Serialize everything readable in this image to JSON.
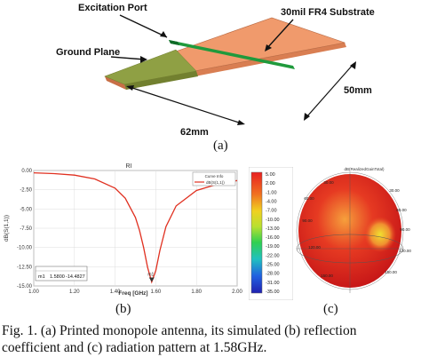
{
  "figure_a": {
    "excitation_label": "Excitation Port",
    "ground_label": "Ground Plane",
    "substrate_label": "30mil FR4 Substrate",
    "dim_length": "62mm",
    "dim_width": "50mm",
    "sub_label": "(a)",
    "colors": {
      "substrate": "#f09a6c",
      "ground": "#8fa044",
      "feed": "#1f9a3c"
    }
  },
  "figure_b": {
    "title": "RI",
    "ylabel": "dB(S(1,1))",
    "xlabel": "Freq [GHz]",
    "legend_title": "Curve Info",
    "legend_series": "dB(S(1,1))",
    "marker_name": "m1",
    "marker_x": "1.5800",
    "marker_y": "-14.4827",
    "marker_point_label": "m1",
    "sub_label": "(b)",
    "chart_data": {
      "type": "line",
      "x_ticks": [
        "1.00",
        "1.20",
        "1.40",
        "1.60",
        "1.80",
        "2.00"
      ],
      "y_ticks": [
        "0.00",
        "-2.50",
        "-5.00",
        "-7.50",
        "-10.00",
        "-12.50",
        "-15.00"
      ],
      "xlim": [
        1.0,
        2.0
      ],
      "ylim": [
        -15,
        0
      ],
      "series": [
        {
          "name": "dB(S(1,1))",
          "color": "#e03020",
          "x": [
            1.0,
            1.1,
            1.2,
            1.3,
            1.4,
            1.45,
            1.5,
            1.52,
            1.54,
            1.56,
            1.58,
            1.6,
            1.62,
            1.65,
            1.7,
            1.8,
            1.9,
            2.0
          ],
          "y": [
            -0.3,
            -0.4,
            -0.6,
            -1.1,
            -2.3,
            -3.6,
            -6.1,
            -7.8,
            -10.0,
            -12.6,
            -14.48,
            -13.0,
            -10.4,
            -7.3,
            -4.6,
            -2.6,
            -1.8,
            -1.3
          ]
        }
      ]
    }
  },
  "colorbar": {
    "ticks": [
      "5.00",
      "2.00",
      "-1.00",
      "-4.00",
      "-7.00",
      "-10.00",
      "-13.00",
      "-16.00",
      "-19.00",
      "-22.00",
      "-25.00",
      "-28.00",
      "-31.00",
      "-35.00"
    ]
  },
  "figure_c": {
    "title": "dB(RealizedGainTotal)",
    "labels": [
      "30.00",
      "60.00",
      "90.00",
      "120.00",
      "150.00",
      "30.00",
      "60.00",
      "90.00",
      "120.00",
      "150.00"
    ],
    "sub_label": "(c)"
  },
  "caption": {
    "line1": "Fig. 1.  (a) Printed monopole antenna, its simulated (b) reflection",
    "line2": "coefficient and (c) radiation pattern at 1.58GHz."
  }
}
